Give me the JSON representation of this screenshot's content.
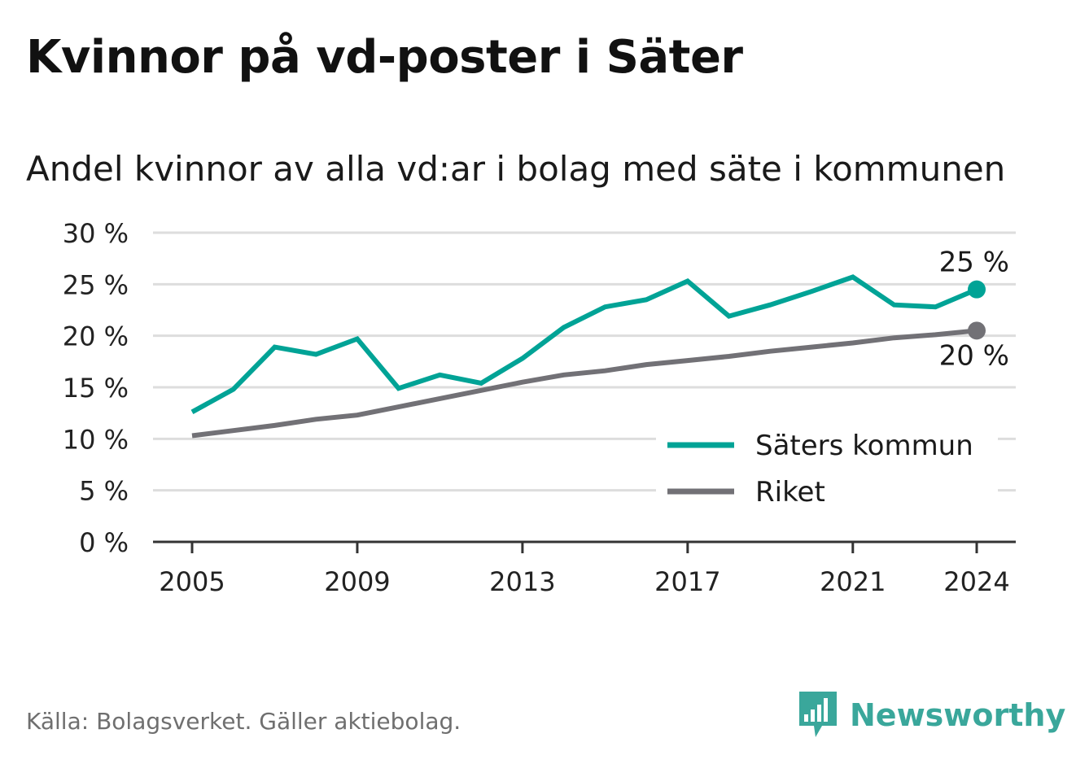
{
  "title": "Kvinnor på vd-poster i Säter",
  "subtitle": "Andel kvinnor av alla vd:ar i bolag med säte i kommunen",
  "source": "Källa: Bolagsverket. Gäller aktiebolag.",
  "brand": "Newsworthy",
  "colors": {
    "accent": "#00a396",
    "national": "#727176",
    "grid": "#dddddd",
    "axis": "#333333",
    "brand": "#3aa79b"
  },
  "chart_data": {
    "type": "line",
    "title": "Kvinnor på vd-poster i Säter",
    "subtitle": "Andel kvinnor av alla vd:ar i bolag med säte i kommunen",
    "ylim": [
      0,
      30
    ],
    "yticks": [
      0,
      5,
      10,
      15,
      20,
      25,
      30
    ],
    "ytick_labels": [
      "0 %",
      "5 %",
      "10 %",
      "15 %",
      "20 %",
      "25 %",
      "30 %"
    ],
    "xticks": [
      2005,
      2009,
      2013,
      2017,
      2021,
      2024
    ],
    "xtick_labels": [
      "2005",
      "2009",
      "2013",
      "2017",
      "2021",
      "2024"
    ],
    "x": [
      2005,
      2006,
      2007,
      2008,
      2009,
      2010,
      2011,
      2012,
      2013,
      2014,
      2015,
      2016,
      2017,
      2018,
      2019,
      2020,
      2021,
      2022,
      2023,
      2024
    ],
    "series": [
      {
        "name": "Säters kommun",
        "color": "#00a396",
        "values": [
          12.6,
          14.8,
          18.9,
          18.2,
          19.7,
          14.9,
          16.2,
          15.4,
          17.8,
          20.8,
          22.8,
          23.5,
          25.3,
          21.9,
          23.0,
          24.3,
          25.7,
          23.0,
          22.8,
          24.5
        ],
        "end_label": "25 %"
      },
      {
        "name": "Riket",
        "color": "#727176",
        "values": [
          10.3,
          10.8,
          11.3,
          11.9,
          12.3,
          13.1,
          13.9,
          14.7,
          15.5,
          16.2,
          16.6,
          17.2,
          17.6,
          18.0,
          18.5,
          18.9,
          19.3,
          19.8,
          20.1,
          20.5
        ],
        "end_label": "20 %"
      }
    ],
    "grid": true,
    "legend_position": "bottom-right"
  }
}
